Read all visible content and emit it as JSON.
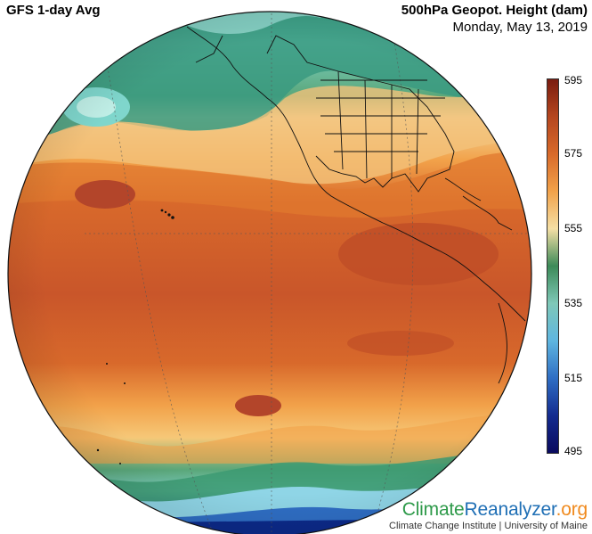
{
  "header": {
    "left_title": "GFS 1-day Avg",
    "right_title": "500hPa Geopot. Height (dam)",
    "date": "Monday, May 13, 2019"
  },
  "colorbar": {
    "ticks": [
      "595",
      "575",
      "555",
      "535",
      "515",
      "495"
    ],
    "colors": [
      "#7a1c10",
      "#b5461f",
      "#d86a2a",
      "#f2a24a",
      "#f5dfa5",
      "#3c8a58",
      "#7fc8b8",
      "#5fb6e0",
      "#2f6ec4",
      "#142c8f",
      "#0a0a5e"
    ]
  },
  "brand": {
    "part1": "Climate",
    "part2": "Reanalyzer",
    "part3": ".org",
    "subtitle": "Climate Change Institute | University of Maine"
  }
}
